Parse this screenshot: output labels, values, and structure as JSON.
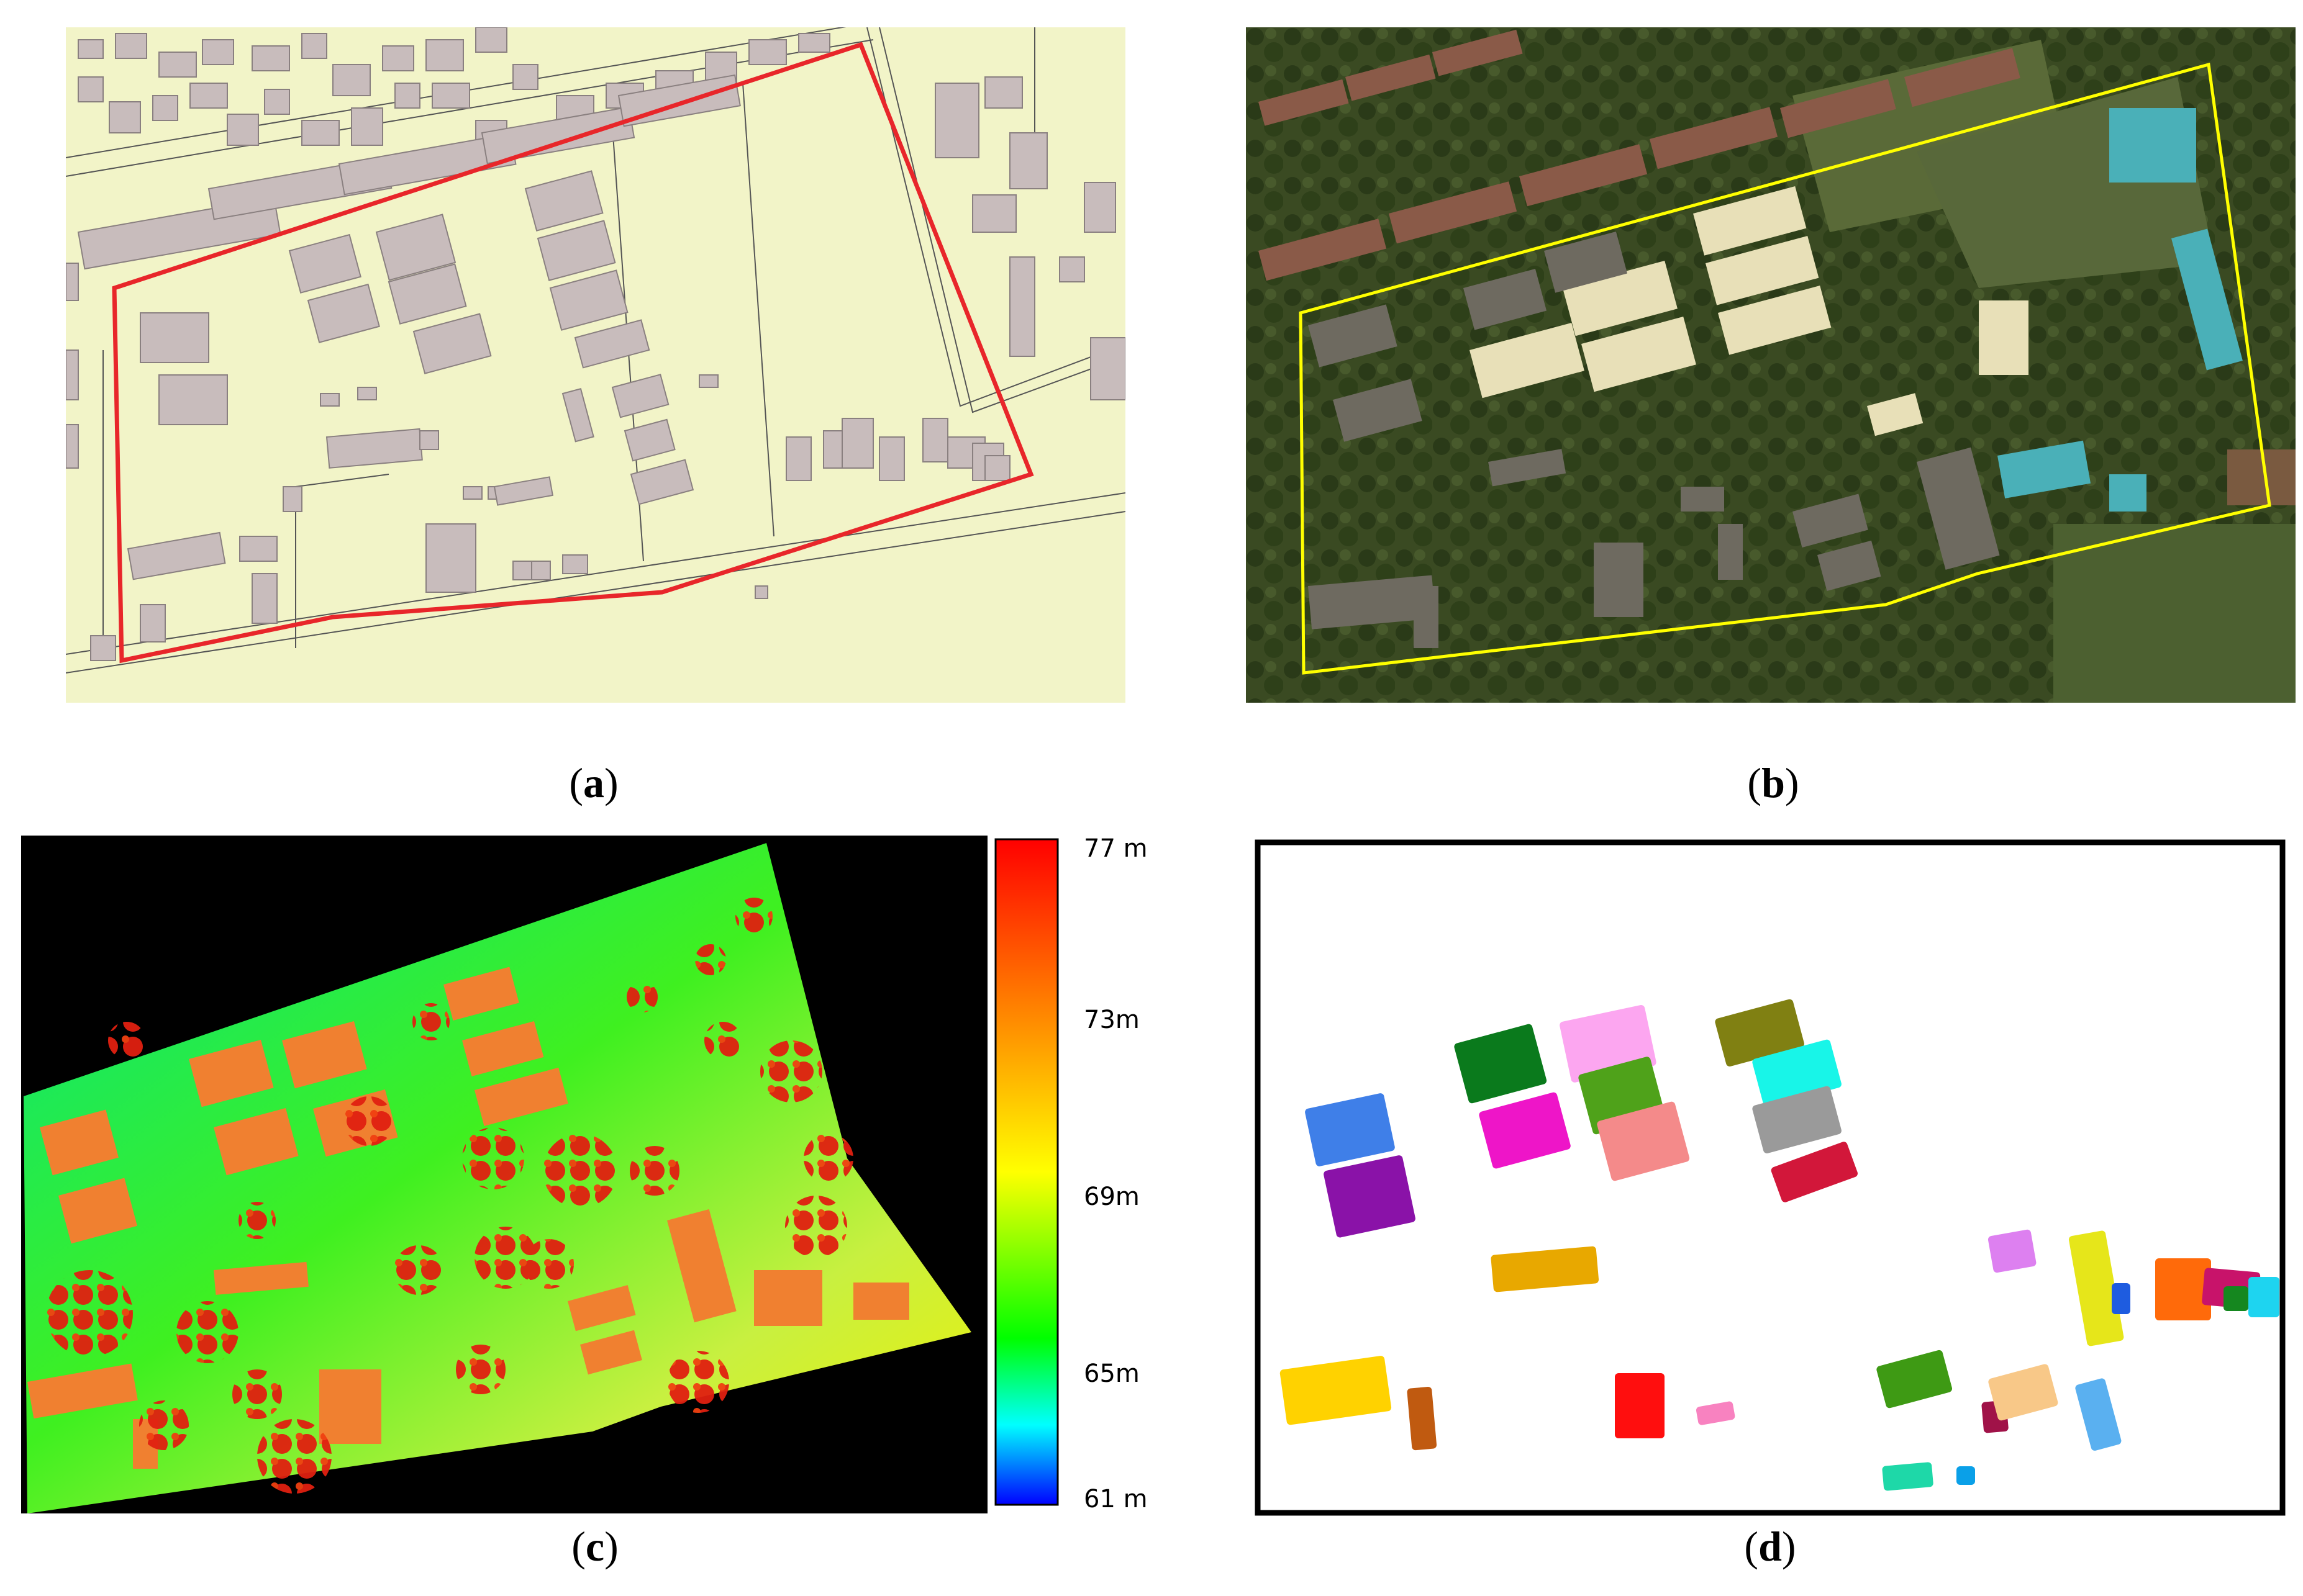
{
  "panels": {
    "a": {
      "caption_open": "(",
      "caption_letter": "a",
      "caption_close": ")"
    },
    "b": {
      "caption_open": "(",
      "caption_letter": "b",
      "caption_close": ")"
    },
    "c": {
      "caption_open": "(",
      "caption_letter": "c",
      "caption_close": ")"
    },
    "d": {
      "caption_open": "(",
      "caption_letter": "d",
      "caption_close": ")"
    }
  },
  "colorbar": {
    "ticks": [
      "77 m",
      "73m",
      "69m",
      "65m",
      "61 m"
    ],
    "colors": [
      "#ff0000",
      "#ff8000",
      "#ffff00",
      "#00ff00",
      "#00ffff",
      "#0000ff"
    ]
  },
  "colors": {
    "map_background": "#f2f4c8",
    "map_building": "#c8bcbc",
    "boundary_a": "#e8262a",
    "boundary_b": "#ffff00",
    "frame_d": "#000000"
  },
  "segment_colors": [
    "#3f7fe8",
    "#8a12a8",
    "#0a7a1c",
    "#ee15c8",
    "#fca6f0",
    "#4fa21a",
    "#f48a8a",
    "#808012",
    "#18f5e8",
    "#9a9a9a",
    "#d2173a",
    "#e8a800",
    "#dd80f0",
    "#e6e61a",
    "#1e5ce0",
    "#ff6a0a",
    "#c8136a",
    "#1ed4f0",
    "#ffd200",
    "#c05a10",
    "#ff0e0e",
    "#0aa0e8",
    "#f882c0",
    "#a01248",
    "#5ab0f0",
    "#3e9a14",
    "#f8c888",
    "#15871f",
    "#1ed8a8"
  ]
}
